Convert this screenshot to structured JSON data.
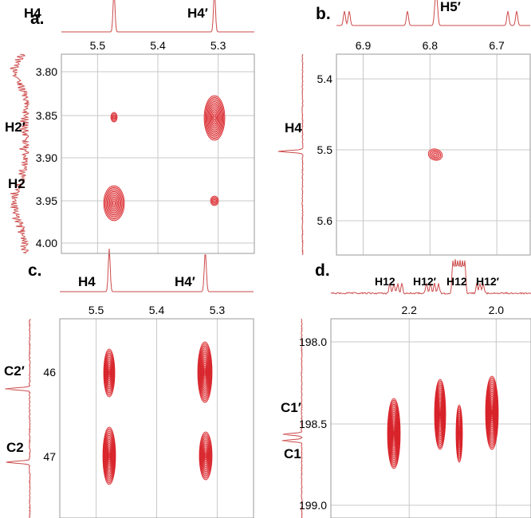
{
  "chart_data": [
    {
      "type": "scatter",
      "panel": "a.",
      "xlim": [
        5.56,
        5.24
      ],
      "ylim": [
        3.785,
        4.02
      ],
      "xticks": [
        "5.5",
        "5.4",
        "5.3"
      ],
      "yticks": [
        "3.80",
        "3.85",
        "3.90",
        "3.95",
        "4.00"
      ],
      "top_labels": [
        "H4",
        "H4′"
      ],
      "side_labels": [
        "H2′",
        "H2"
      ],
      "peaks": [
        {
          "x": 5.49,
          "y": 3.853,
          "size": "small"
        },
        {
          "x": 5.49,
          "y": 3.955,
          "size": "large"
        },
        {
          "x": 5.32,
          "y": 3.853,
          "size": "large"
        },
        {
          "x": 5.32,
          "y": 3.953,
          "size": "small"
        }
      ]
    },
    {
      "type": "scatter",
      "panel": "b.",
      "xlim": [
        6.94,
        6.65
      ],
      "ylim": [
        5.34,
        5.66
      ],
      "xticks": [
        "6.9",
        "6.8",
        "6.7"
      ],
      "yticks": [
        "5.4",
        "5.5",
        "5.6"
      ],
      "top_labels": [
        "H5′"
      ],
      "side_labels": [
        "H4"
      ],
      "peaks": [
        {
          "x": 6.795,
          "y": 5.507,
          "size": "medium"
        }
      ]
    },
    {
      "type": "scatter",
      "panel": "c.",
      "xlim": [
        5.56,
        5.24
      ],
      "ylim": [
        45.3,
        47.8
      ],
      "xticks": [
        "5.5",
        "5.4",
        "5.3"
      ],
      "yticks": [
        "46",
        "47"
      ],
      "top_labels": [
        "H4",
        "H4′"
      ],
      "side_labels": [
        "C2′",
        "C2"
      ],
      "peaks": [
        {
          "x": 5.49,
          "y": 46.1,
          "size": "tall"
        },
        {
          "x": 5.49,
          "y": 47.0,
          "size": "tall"
        },
        {
          "x": 5.32,
          "y": 46.1,
          "size": "tall"
        },
        {
          "x": 5.32,
          "y": 47.0,
          "size": "tall"
        }
      ]
    },
    {
      "type": "scatter",
      "panel": "d.",
      "xlim": [
        2.38,
        1.92
      ],
      "ylim": [
        197.9,
        199.05
      ],
      "xticks": [
        "2.2",
        "2.0"
      ],
      "yticks": [
        "198.0",
        "198.5",
        "199.0"
      ],
      "top_labels": [
        "H12",
        "H12′",
        "H12",
        "H12′"
      ],
      "side_labels": [
        "C1′",
        "C1"
      ],
      "peaks": [
        {
          "x": 2.28,
          "y": 198.55,
          "size": "tall"
        },
        {
          "x": 2.14,
          "y": 198.45,
          "size": "tall"
        },
        {
          "x": 2.075,
          "y": 198.55,
          "size": "tall"
        },
        {
          "x": 1.99,
          "y": 198.45,
          "size": "tall"
        }
      ]
    }
  ]
}
